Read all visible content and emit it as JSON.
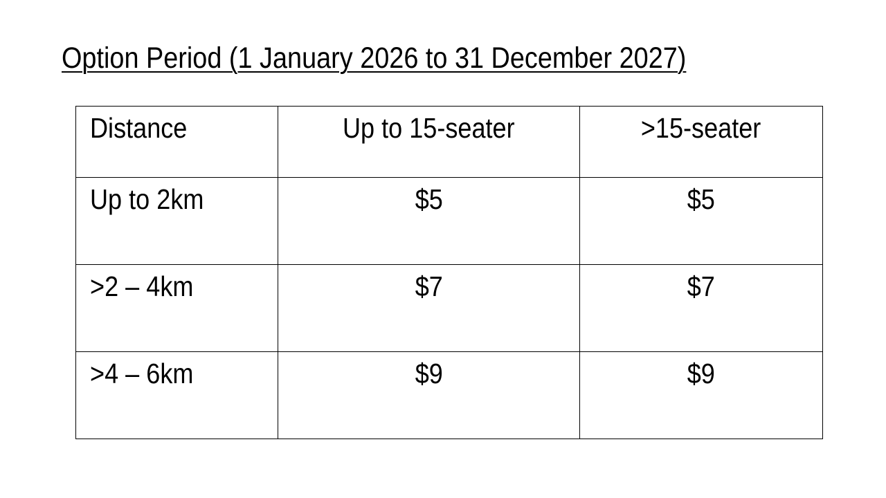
{
  "document": {
    "title": "Option Period (1 January 2026 to 31 December 2027)"
  },
  "table": {
    "headers": [
      "Distance",
      "Up to 15-seater",
      ">15-seater"
    ],
    "rows": [
      {
        "distance": "Up to 2km",
        "up_to_15_seater": "$5",
        "over_15_seater": "$5"
      },
      {
        "distance": ">2 – 4km",
        "up_to_15_seater": "$7",
        "over_15_seater": "$7"
      },
      {
        "distance": ">4 – 6km",
        "up_to_15_seater": "$9",
        "over_15_seater": "$9"
      }
    ]
  }
}
